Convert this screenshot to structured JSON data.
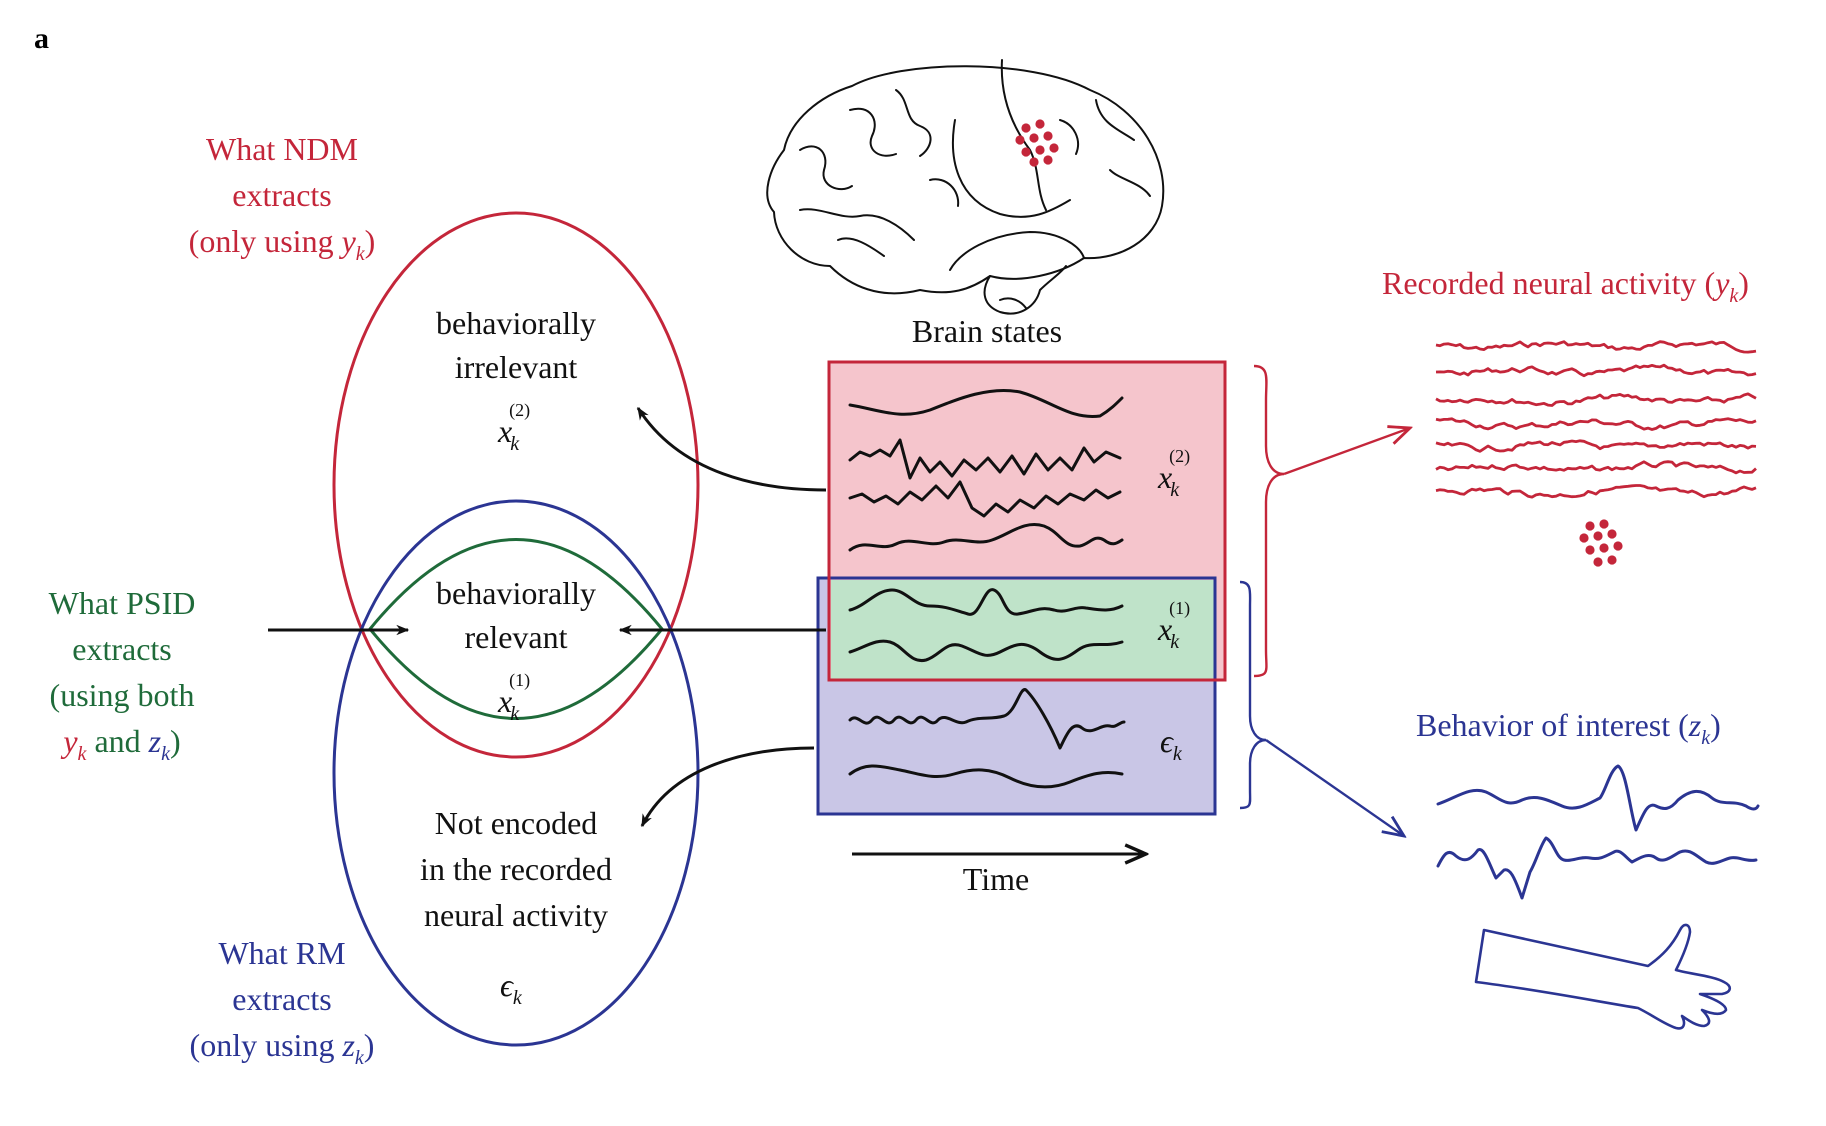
{
  "panel_letter": "a",
  "colors": {
    "red": "#c4263a",
    "blue": "#2b3593",
    "green": "#1f6b3a",
    "black": "#111111",
    "red_fill": "#f5c5cc",
    "green_fill": "#bfe3c9",
    "blue_fill": "#c9c6e6"
  },
  "ndm": {
    "line1": "What NDM",
    "line2": "extracts",
    "line3_prefix": "(only using ",
    "var": "y",
    "sub": "k",
    "suffix": ")"
  },
  "psid": {
    "line1": "What PSID",
    "line2": "extracts",
    "line3": "(using both",
    "var_y": "y",
    "sub_y": "k",
    "and": " and ",
    "var_z": "z",
    "sub_z": "k",
    "suffix": ")"
  },
  "rm": {
    "line1": "What RM",
    "line2": "extracts",
    "line3_prefix": "(only using ",
    "var": "z",
    "sub": "k",
    "suffix": ")"
  },
  "irrelevant": {
    "line1": "behaviorally",
    "line2": "irrelevant",
    "var": "x",
    "sub": "k",
    "sup": "(2)"
  },
  "relevant": {
    "line1": "behaviorally",
    "line2": "relevant",
    "var": "x",
    "sub": "k",
    "sup": "(1)"
  },
  "not_encoded": {
    "line1": "Not encoded",
    "line2": "in the recorded",
    "line3": "neural activity",
    "var": "ϵ",
    "sub": "k"
  },
  "brain_states": {
    "title": "Brain states",
    "x2": {
      "var": "x",
      "sub": "k",
      "sup": "(2)"
    },
    "x1": {
      "var": "x",
      "sub": "k",
      "sup": "(1)"
    },
    "eps": {
      "var": "ϵ",
      "sub": "k"
    }
  },
  "time_label": "Time",
  "neural": {
    "label_prefix": "Recorded neural activity (",
    "var": "y",
    "sub": "k",
    "suffix": ")"
  },
  "behavior": {
    "label_prefix": "Behavior of interest (",
    "var": "z",
    "sub": "k",
    "suffix": ")"
  }
}
